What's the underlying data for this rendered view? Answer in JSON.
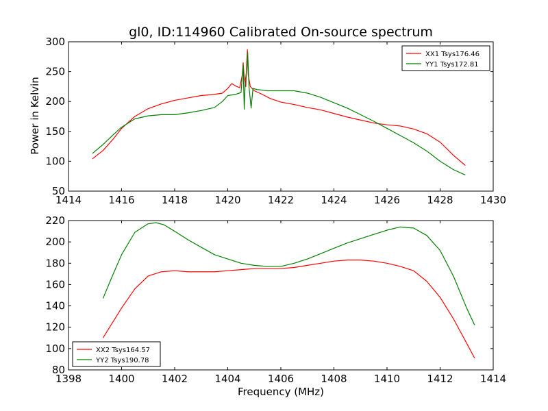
{
  "chart_data": [
    {
      "type": "line",
      "title": "gl0, ID:114960 Calibrated On-source spectrum",
      "xlabel": "",
      "ylabel": "Power in Kelvin",
      "xlim": [
        1414,
        1430
      ],
      "ylim": [
        50,
        300
      ],
      "xticks": [
        1414,
        1416,
        1418,
        1420,
        1422,
        1424,
        1426,
        1428,
        1430
      ],
      "yticks": [
        50,
        100,
        150,
        200,
        250,
        300
      ],
      "legend": "top-right",
      "series": [
        {
          "name": "XX1 Tsys176.46",
          "color": "#ff0000",
          "points": [
            [
              1414.9,
              104
            ],
            [
              1415.3,
              118
            ],
            [
              1415.7,
              138
            ],
            [
              1416.0,
              155
            ],
            [
              1416.5,
              175
            ],
            [
              1417.0,
              188
            ],
            [
              1417.5,
              196
            ],
            [
              1418.0,
              202
            ],
            [
              1418.5,
              206
            ],
            [
              1419.0,
              210
            ],
            [
              1419.5,
              212
            ],
            [
              1419.8,
              214
            ],
            [
              1420.0,
              222
            ],
            [
              1420.15,
              230
            ],
            [
              1420.3,
              226
            ],
            [
              1420.45,
              223
            ],
            [
              1420.55,
              245
            ],
            [
              1420.58,
              265
            ],
            [
              1420.62,
              240
            ],
            [
              1420.68,
              225
            ],
            [
              1420.72,
              270
            ],
            [
              1420.74,
              287
            ],
            [
              1420.77,
              245
            ],
            [
              1420.85,
              225
            ],
            [
              1421.0,
              218
            ],
            [
              1421.3,
              212
            ],
            [
              1421.6,
              205
            ],
            [
              1422.0,
              199
            ],
            [
              1422.5,
              195
            ],
            [
              1423.0,
              190
            ],
            [
              1423.5,
              186
            ],
            [
              1424.0,
              180
            ],
            [
              1424.5,
              174
            ],
            [
              1425.0,
              169
            ],
            [
              1425.5,
              164
            ],
            [
              1426.0,
              161
            ],
            [
              1426.5,
              159
            ],
            [
              1427.0,
              154
            ],
            [
              1427.5,
              146
            ],
            [
              1428.0,
              132
            ],
            [
              1428.5,
              110
            ],
            [
              1428.95,
              93
            ]
          ]
        },
        {
          "name": "YY1 Tsys172.81",
          "color": "#008000",
          "points": [
            [
              1414.9,
              113
            ],
            [
              1415.3,
              128
            ],
            [
              1415.7,
              145
            ],
            [
              1416.0,
              157
            ],
            [
              1416.5,
              171
            ],
            [
              1417.0,
              176
            ],
            [
              1417.5,
              178
            ],
            [
              1418.0,
              178
            ],
            [
              1418.5,
              181
            ],
            [
              1419.0,
              185
            ],
            [
              1419.5,
              190
            ],
            [
              1419.8,
              200
            ],
            [
              1420.0,
              210
            ],
            [
              1420.3,
              212
            ],
            [
              1420.5,
              215
            ],
            [
              1420.58,
              262
            ],
            [
              1420.62,
              187
            ],
            [
              1420.66,
              235
            ],
            [
              1420.72,
              255
            ],
            [
              1420.75,
              283
            ],
            [
              1420.8,
              225
            ],
            [
              1420.88,
              189
            ],
            [
              1420.95,
              222
            ],
            [
              1421.1,
              220
            ],
            [
              1421.5,
              218
            ],
            [
              1422.0,
              218
            ],
            [
              1422.5,
              218
            ],
            [
              1423.0,
              214
            ],
            [
              1423.5,
              207
            ],
            [
              1424.0,
              198
            ],
            [
              1424.5,
              189
            ],
            [
              1425.0,
              178
            ],
            [
              1425.5,
              167
            ],
            [
              1426.0,
              155
            ],
            [
              1426.5,
              143
            ],
            [
              1427.0,
              131
            ],
            [
              1427.5,
              117
            ],
            [
              1428.0,
              100
            ],
            [
              1428.5,
              86
            ],
            [
              1428.95,
              77
            ]
          ]
        }
      ]
    },
    {
      "type": "line",
      "title": "",
      "xlabel": "Frequency (MHz)",
      "ylabel": "",
      "xlim": [
        1398,
        1414
      ],
      "ylim": [
        80,
        220
      ],
      "xticks": [
        1398,
        1400,
        1402,
        1404,
        1406,
        1408,
        1410,
        1412,
        1414
      ],
      "yticks": [
        80,
        100,
        120,
        140,
        160,
        180,
        200,
        220
      ],
      "legend": "bottom-left",
      "series": [
        {
          "name": "XX2 Tsys164.57",
          "color": "#ff0000",
          "points": [
            [
              1399.3,
              110
            ],
            [
              1399.6,
              122
            ],
            [
              1400.0,
              138
            ],
            [
              1400.5,
              156
            ],
            [
              1401.0,
              168
            ],
            [
              1401.5,
              172
            ],
            [
              1402.0,
              173
            ],
            [
              1402.5,
              172
            ],
            [
              1403.0,
              172
            ],
            [
              1403.5,
              172
            ],
            [
              1404.0,
              173
            ],
            [
              1404.5,
              174
            ],
            [
              1405.0,
              175
            ],
            [
              1405.5,
              175
            ],
            [
              1406.0,
              175
            ],
            [
              1406.5,
              176
            ],
            [
              1407.0,
              178
            ],
            [
              1407.5,
              180
            ],
            [
              1408.0,
              182
            ],
            [
              1408.5,
              183
            ],
            [
              1409.0,
              183
            ],
            [
              1409.5,
              182
            ],
            [
              1410.0,
              180
            ],
            [
              1410.5,
              177
            ],
            [
              1411.0,
              173
            ],
            [
              1411.5,
              163
            ],
            [
              1412.0,
              148
            ],
            [
              1412.5,
              128
            ],
            [
              1413.0,
              105
            ],
            [
              1413.3,
              91
            ]
          ]
        },
        {
          "name": "YY2 Tsys190.78",
          "color": "#008000",
          "points": [
            [
              1399.3,
              147
            ],
            [
              1399.6,
              165
            ],
            [
              1400.0,
              188
            ],
            [
              1400.5,
              209
            ],
            [
              1401.0,
              217
            ],
            [
              1401.3,
              218
            ],
            [
              1401.6,
              216
            ],
            [
              1402.0,
              210
            ],
            [
              1402.5,
              202
            ],
            [
              1403.0,
              195
            ],
            [
              1403.5,
              188
            ],
            [
              1404.0,
              184
            ],
            [
              1404.5,
              180
            ],
            [
              1405.0,
              178
            ],
            [
              1405.5,
              177
            ],
            [
              1406.0,
              177
            ],
            [
              1406.5,
              180
            ],
            [
              1407.0,
              184
            ],
            [
              1407.5,
              189
            ],
            [
              1408.0,
              194
            ],
            [
              1408.5,
              199
            ],
            [
              1409.0,
              203
            ],
            [
              1409.5,
              207
            ],
            [
              1410.0,
              211
            ],
            [
              1410.5,
              214
            ],
            [
              1411.0,
              213
            ],
            [
              1411.5,
              206
            ],
            [
              1412.0,
              192
            ],
            [
              1412.5,
              168
            ],
            [
              1413.0,
              138
            ],
            [
              1413.3,
              122
            ]
          ]
        }
      ]
    }
  ]
}
